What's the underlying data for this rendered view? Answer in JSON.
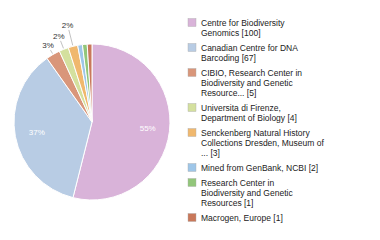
{
  "chart_data": {
    "type": "pie",
    "categories": [
      "Centre for Biodiversity\nGenomics [100]",
      "Canadian Centre for DNA\nBarcoding [67]",
      "CIBIO, Research Center in\nBiodiversity and Genetic\nResource... [5]",
      "Universita di Firenze,\nDepartment of Biology [4]",
      "Senckenberg Natural History\nCollections Dresden, Museum of\n... [3]",
      "Mined from GenBank, NCBI [2]",
      "Research Center in\nBiodiversity and Genetic\nResources [1]",
      "Macrogen, Europe [1]"
    ],
    "values": [
      55,
      37,
      3,
      2,
      2,
      1,
      1,
      1
    ],
    "value_labels": [
      "55%",
      "37%",
      "3%",
      "2%",
      "2%",
      null,
      null,
      null
    ],
    "colors": [
      "#d9b3d9",
      "#b8cce4",
      "#d9967a",
      "#d4e09e",
      "#f0b86e",
      "#9ec6e8",
      "#92c67a",
      "#c9785a"
    ],
    "data_labels": true,
    "legend": "right"
  }
}
